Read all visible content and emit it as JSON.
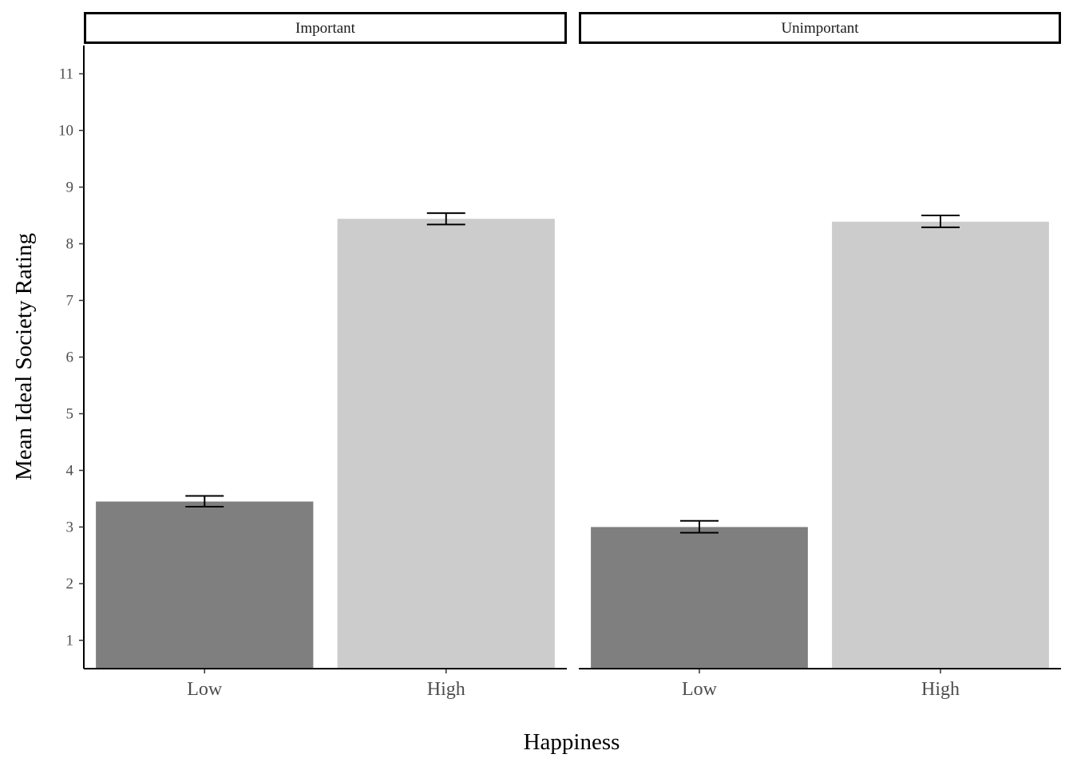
{
  "chart_data": {
    "type": "bar",
    "xlabel": "Happiness",
    "ylabel": "Mean Ideal Society Rating",
    "ylim": [
      0.5,
      11.5
    ],
    "yticks": [
      1,
      2,
      3,
      4,
      5,
      6,
      7,
      8,
      9,
      10,
      11
    ],
    "categories": [
      "Low",
      "High"
    ],
    "grid": false,
    "legend": "none",
    "colors": {
      "Low": "#7f7f7f",
      "High": "#cccccc"
    },
    "facets": [
      {
        "label": "Important",
        "values": [
          3.45,
          8.44
        ],
        "errors": [
          [
            3.36,
            3.55
          ],
          [
            8.34,
            8.54
          ]
        ]
      },
      {
        "label": "Unimportant",
        "values": [
          3.0,
          8.39
        ],
        "errors": [
          [
            2.9,
            3.11
          ],
          [
            8.29,
            8.5
          ]
        ]
      }
    ]
  }
}
